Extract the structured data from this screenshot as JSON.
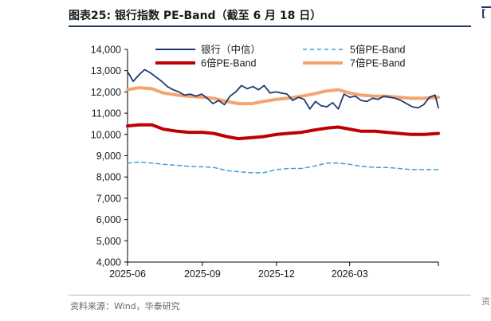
{
  "header": {
    "title": "图表25:   银行指数 PE-Band（截至 6 月 18 日）"
  },
  "footer": {
    "source": "资料来源：Wind，华泰研究"
  },
  "right_edge": {
    "mark": "[",
    "foot": "资"
  },
  "chart_data": {
    "type": "line",
    "title": "图表25:   银行指数 PE-Band（截至 6 月 18 日）",
    "xlabel": "",
    "ylabel": "",
    "ylim": [
      4000,
      14000
    ],
    "yticks": [
      4000,
      5000,
      6000,
      7000,
      8000,
      9000,
      10000,
      11000,
      12000,
      13000,
      14000
    ],
    "ytick_labels": [
      "4,000",
      "5,000",
      "6,000",
      "7,000",
      "8,000",
      "9,000",
      "10,000",
      "11,000",
      "12,000",
      "13,000",
      "14,000"
    ],
    "x_start": "2025-06-01",
    "x_end": "2026-06-18",
    "xticks": [
      "2025-06",
      "2025-09",
      "2025-12",
      "2026-03"
    ],
    "grid": false,
    "legend_placement": "top",
    "series": [
      {
        "name": "银行（中信）",
        "color": "#1f3b73",
        "dash": "solid",
        "x": [
          "2025-06-01",
          "2025-06-08",
          "2025-06-15",
          "2025-06-22",
          "2025-06-29",
          "2025-07-06",
          "2025-07-13",
          "2025-07-20",
          "2025-07-27",
          "2025-08-03",
          "2025-08-10",
          "2025-08-17",
          "2025-08-24",
          "2025-08-31",
          "2025-09-07",
          "2025-09-14",
          "2025-09-21",
          "2025-09-28",
          "2025-10-05",
          "2025-10-12",
          "2025-10-19",
          "2025-10-26",
          "2025-11-02",
          "2025-11-09",
          "2025-11-16",
          "2025-11-23",
          "2025-11-30",
          "2025-12-07",
          "2025-12-14",
          "2025-12-21",
          "2025-12-28",
          "2026-01-04",
          "2026-01-11",
          "2026-01-18",
          "2026-01-25",
          "2026-02-01",
          "2026-02-08",
          "2026-02-15",
          "2026-02-22",
          "2026-03-01",
          "2026-03-08",
          "2026-03-15",
          "2026-03-22",
          "2026-03-29",
          "2026-04-05",
          "2026-04-12",
          "2026-04-19",
          "2026-04-26",
          "2026-05-03",
          "2026-05-10",
          "2026-05-17",
          "2026-05-24",
          "2026-05-31",
          "2026-06-07",
          "2026-06-14",
          "2026-06-18"
        ],
        "y": [
          12950,
          12500,
          12800,
          13050,
          12900,
          12700,
          12500,
          12250,
          12100,
          12000,
          11850,
          11900,
          11800,
          11900,
          11700,
          11450,
          11600,
          11400,
          11800,
          12000,
          12300,
          12150,
          12250,
          12100,
          12300,
          11950,
          12000,
          11950,
          11900,
          11600,
          11750,
          11650,
          11200,
          11550,
          11350,
          11300,
          11500,
          11200,
          11900,
          11750,
          11800,
          11600,
          11550,
          11700,
          11650,
          11800,
          11750,
          11700,
          11600,
          11450,
          11300,
          11250,
          11400,
          11750,
          11850,
          11250
        ]
      },
      {
        "name": "5倍PE-Band",
        "color": "#3aa0e0",
        "dash": "dashed",
        "x": [
          "2025-06-01",
          "2025-06-15",
          "2025-07-01",
          "2025-07-15",
          "2025-08-01",
          "2025-08-15",
          "2025-09-01",
          "2025-09-15",
          "2025-10-01",
          "2025-10-15",
          "2025-11-01",
          "2025-11-15",
          "2025-12-01",
          "2025-12-15",
          "2026-01-01",
          "2026-01-15",
          "2026-02-01",
          "2026-02-15",
          "2026-03-01",
          "2026-03-15",
          "2026-04-01",
          "2026-04-15",
          "2026-05-01",
          "2026-05-15",
          "2026-06-01",
          "2026-06-18"
        ],
        "y": [
          8650,
          8700,
          8650,
          8600,
          8550,
          8500,
          8480,
          8450,
          8300,
          8250,
          8200,
          8200,
          8350,
          8400,
          8400,
          8500,
          8650,
          8650,
          8600,
          8500,
          8450,
          8450,
          8400,
          8350,
          8350,
          8350
        ]
      },
      {
        "name": "6倍PE-Band",
        "color": "#c00000",
        "dash": "solid",
        "x": [
          "2025-06-01",
          "2025-06-15",
          "2025-07-01",
          "2025-07-15",
          "2025-08-01",
          "2025-08-15",
          "2025-09-01",
          "2025-09-15",
          "2025-10-01",
          "2025-10-15",
          "2025-11-01",
          "2025-11-15",
          "2025-12-01",
          "2025-12-15",
          "2026-01-01",
          "2026-01-15",
          "2026-02-01",
          "2026-02-15",
          "2026-03-01",
          "2026-03-15",
          "2026-04-01",
          "2026-04-15",
          "2026-05-01",
          "2026-05-15",
          "2026-06-01",
          "2026-06-18"
        ],
        "y": [
          10400,
          10450,
          10450,
          10250,
          10150,
          10100,
          10100,
          10050,
          9900,
          9800,
          9850,
          9900,
          10000,
          10050,
          10100,
          10200,
          10300,
          10350,
          10250,
          10150,
          10150,
          10100,
          10050,
          10000,
          10000,
          10050
        ]
      },
      {
        "name": "7倍PE-Band",
        "color": "#f4a46e",
        "dash": "solid",
        "x": [
          "2025-06-01",
          "2025-06-15",
          "2025-07-01",
          "2025-07-15",
          "2025-08-01",
          "2025-08-15",
          "2025-09-01",
          "2025-09-15",
          "2025-10-01",
          "2025-10-15",
          "2025-11-01",
          "2025-11-15",
          "2025-12-01",
          "2025-12-15",
          "2026-01-01",
          "2026-01-15",
          "2026-02-01",
          "2026-02-15",
          "2026-03-01",
          "2026-03-15",
          "2026-04-01",
          "2026-04-15",
          "2026-05-01",
          "2026-05-15",
          "2026-06-01",
          "2026-06-18"
        ],
        "y": [
          12100,
          12200,
          12150,
          11950,
          11850,
          11800,
          11750,
          11700,
          11550,
          11450,
          11450,
          11550,
          11650,
          11700,
          11800,
          11900,
          12050,
          12100,
          11950,
          11850,
          11800,
          11800,
          11750,
          11700,
          11700,
          11750
        ]
      }
    ]
  }
}
